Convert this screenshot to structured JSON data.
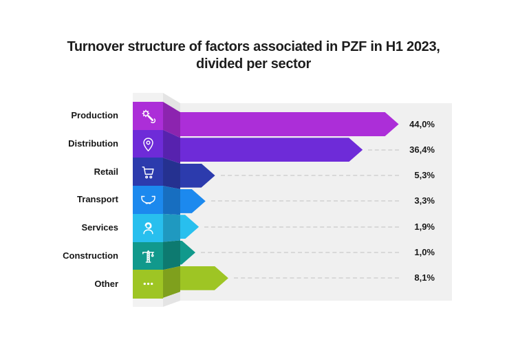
{
  "title": {
    "line1": "Turnover structure of factors associated in PZF in H1 2023,",
    "line2": "divided per sector"
  },
  "chart_data": {
    "type": "bar",
    "orientation": "horizontal",
    "title": "Turnover structure of factors associated in PZF in H1 2023, divided per sector",
    "value_unit": "%",
    "decimal_separator": ",",
    "value_labels_position": "right",
    "leader_lines": "dashed",
    "categories": [
      "Production",
      "Distribution",
      "Retail",
      "Transport",
      "Services",
      "Construction",
      "Other"
    ],
    "values": [
      44.0,
      36.4,
      5.3,
      3.3,
      1.9,
      1.0,
      8.1
    ],
    "sectors": [
      {
        "label": "Production",
        "value": 44.0,
        "value_label": "44,0%",
        "icon": "gear-wrench-icon",
        "color": "#AC2ED8",
        "fold_color": "#8C24AF"
      },
      {
        "label": "Distribution",
        "value": 36.4,
        "value_label": "36,4%",
        "icon": "location-pin-icon",
        "color": "#6E2BD8",
        "fold_color": "#5722AE"
      },
      {
        "label": "Retail",
        "value": 5.3,
        "value_label": "5,3%",
        "icon": "shopping-cart-icon",
        "color": "#2C3BAD",
        "fold_color": "#253190"
      },
      {
        "label": "Transport",
        "value": 3.3,
        "value_label": "3,3%",
        "icon": "boat-icon",
        "color": "#1C89EE",
        "fold_color": "#176EC0"
      },
      {
        "label": "Services",
        "value": 1.9,
        "value_label": "1,9%",
        "icon": "support-person-icon",
        "color": "#28BFEE",
        "fold_color": "#1F99C0"
      },
      {
        "label": "Construction",
        "value": 1.0,
        "value_label": "1,0%",
        "icon": "crane-icon",
        "color": "#11998C",
        "fold_color": "#0D7A70"
      },
      {
        "label": "Other",
        "value": 8.1,
        "value_label": "8,1%",
        "icon": "ellipsis-icon",
        "color": "#9EC524",
        "fold_color": "#7FA01D"
      }
    ]
  },
  "colors": {
    "background": "#FFFFFF",
    "plot_backdrop": "#F0F0F0",
    "column_cap": "#F2F2F2",
    "column_cap_fold": "#E4E4E4",
    "dashed_line": "#D8D8D8",
    "title_text": "#1D1D1D",
    "label_text": "#161616"
  }
}
